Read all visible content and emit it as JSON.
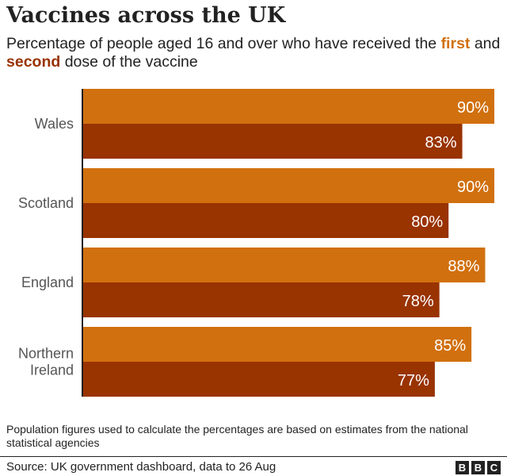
{
  "header": {
    "title": "Vaccines across the UK",
    "subtitle_part1": "Percentage of people aged 16 and over who have received the ",
    "subtitle_first": "first",
    "subtitle_part2": " and ",
    "subtitle_second": "second",
    "subtitle_part3": " dose of the vaccine"
  },
  "colors": {
    "first_dose": "#d1700e",
    "second_dose": "#993300",
    "axis": "#222222"
  },
  "chart_data": {
    "type": "bar",
    "orientation": "horizontal",
    "categories": [
      [
        "Wales"
      ],
      [
        "Scotland"
      ],
      [
        "England"
      ],
      [
        "Northern",
        "Ireland"
      ]
    ],
    "series": [
      {
        "name": "first",
        "values": [
          90,
          90,
          88,
          85
        ],
        "labels": [
          "90%",
          "90%",
          "88%",
          "85%"
        ]
      },
      {
        "name": "second",
        "values": [
          83,
          80,
          78,
          77
        ],
        "labels": [
          "83%",
          "80%",
          "78%",
          "77%"
        ]
      }
    ],
    "xlim": [
      0,
      90
    ],
    "grid": false,
    "legend": "none"
  },
  "footnote": "Population figures used to calculate the percentages are based on estimates from the national statistical agencies",
  "source": "Source: UK government dashboard, data to 26 Aug",
  "logo_letters": [
    "B",
    "B",
    "C"
  ]
}
